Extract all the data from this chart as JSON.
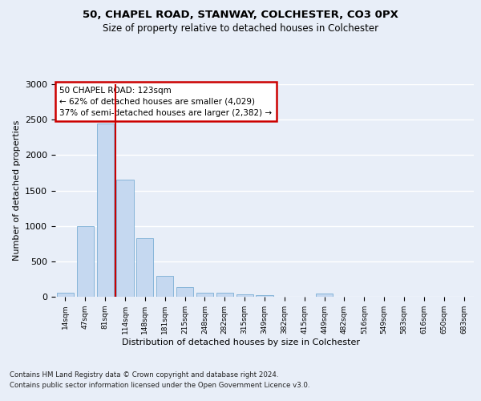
{
  "title1": "50, CHAPEL ROAD, STANWAY, COLCHESTER, CO3 0PX",
  "title2": "Size of property relative to detached houses in Colchester",
  "xlabel": "Distribution of detached houses by size in Colchester",
  "ylabel": "Number of detached properties",
  "categories": [
    "14sqm",
    "47sqm",
    "81sqm",
    "114sqm",
    "148sqm",
    "181sqm",
    "215sqm",
    "248sqm",
    "282sqm",
    "315sqm",
    "349sqm",
    "382sqm",
    "415sqm",
    "449sqm",
    "482sqm",
    "516sqm",
    "549sqm",
    "583sqm",
    "616sqm",
    "650sqm",
    "683sqm"
  ],
  "values": [
    60,
    1000,
    2450,
    1650,
    830,
    300,
    140,
    55,
    55,
    30,
    20,
    0,
    0,
    40,
    0,
    0,
    0,
    0,
    0,
    0,
    0
  ],
  "bar_color": "#c5d8f0",
  "bar_edge_color": "#7aaed4",
  "vline_color": "#cc0000",
  "annotation_text": "50 CHAPEL ROAD: 123sqm\n← 62% of detached houses are smaller (4,029)\n37% of semi-detached houses are larger (2,382) →",
  "annotation_box_color": "#ffffff",
  "annotation_box_edge": "#cc0000",
  "ylim": [
    0,
    3000
  ],
  "yticks": [
    0,
    500,
    1000,
    1500,
    2000,
    2500,
    3000
  ],
  "footnote1": "Contains HM Land Registry data © Crown copyright and database right 2024.",
  "footnote2": "Contains public sector information licensed under the Open Government Licence v3.0.",
  "background_color": "#e8eef8",
  "plot_bg_color": "#e8eef8"
}
